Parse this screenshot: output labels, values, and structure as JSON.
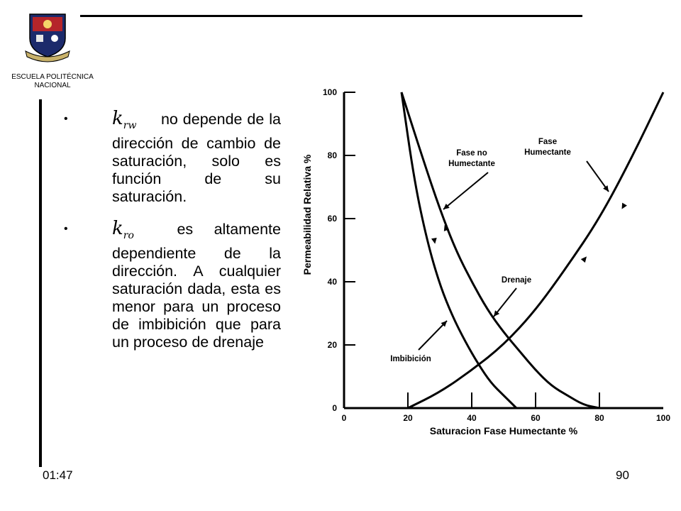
{
  "header": {
    "institution": "ESCUELA POLITÉCNICA NACIONAL"
  },
  "bullets": [
    {
      "symbol": "k",
      "symbol_sub": "rw",
      "text": "no depende de la dirección de cambio de saturación, solo es función de su saturación."
    },
    {
      "symbol": "k",
      "symbol_sub": "ro",
      "text": "es altamente dependiente de la dirección. A cualquier saturación dada, esta es menor para un proceso de imbibición que para un proceso de drenaje"
    }
  ],
  "footer": {
    "time": "01:47",
    "page": "90"
  },
  "chart_data": {
    "type": "line",
    "xlabel": "Saturacion Fase Humectante  %",
    "ylabel": "Permeabilidad Relativa  %",
    "xlim": [
      0,
      100
    ],
    "ylim": [
      0,
      100
    ],
    "xticks": [
      "0",
      "20",
      "40",
      "60",
      "80",
      "100"
    ],
    "yticks": [
      "0",
      "20",
      "40",
      "60",
      "80",
      "100"
    ],
    "series": [
      {
        "x": [
          20,
          30,
          40,
          50,
          60,
          70,
          80,
          90,
          100
        ],
        "y": [
          0,
          5,
          12,
          20,
          31,
          45,
          60,
          79,
          100
        ]
      },
      {
        "x": [
          18,
          22,
          26,
          30,
          34,
          38,
          42,
          46,
          50,
          54
        ],
        "y": [
          100,
          72,
          53,
          39,
          29,
          21,
          14,
          8,
          4,
          0
        ]
      },
      {
        "x": [
          18,
          25,
          30,
          35,
          40,
          45,
          50,
          55,
          60,
          65,
          70,
          75,
          80
        ],
        "y": [
          100,
          78,
          63,
          50,
          40,
          31,
          24,
          18,
          12,
          7,
          4,
          1,
          0
        ]
      }
    ],
    "annotations": [
      {
        "text": "Fase Humectante"
      },
      {
        "text": "Fase no Humectante"
      },
      {
        "text": "Drenaje"
      },
      {
        "text": "Imbibición"
      }
    ],
    "colors": {
      "lines": "#000000"
    }
  }
}
